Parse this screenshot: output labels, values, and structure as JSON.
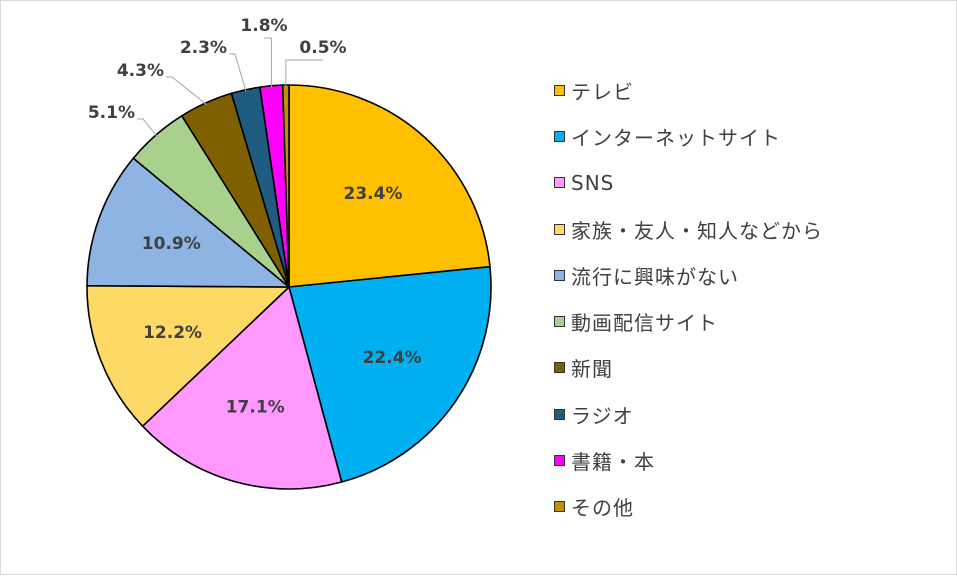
{
  "chart_data": {
    "type": "pie",
    "categories": [
      "テレビ",
      "インターネットサイト",
      "SNS",
      "家族・友人・知人などから",
      "流行に興味がない",
      "動画配信サイト",
      "新聞",
      "ラジオ",
      "書籍・本",
      "その他"
    ],
    "values": [
      23.4,
      22.4,
      17.1,
      12.2,
      10.9,
      5.1,
      4.3,
      2.3,
      1.8,
      0.5
    ],
    "data_labels": [
      "23.4%",
      "22.4%",
      "17.1%",
      "12.2%",
      "10.9%",
      "5.1%",
      "4.3%",
      "2.3%",
      "1.8%",
      "0.5%"
    ],
    "colors": [
      "#FFC000",
      "#00B0F0",
      "#FF99FF",
      "#FFD966",
      "#8EB4E3",
      "#A9D18E",
      "#7F6000",
      "#1F5C80",
      "#FF00FF",
      "#BF9000"
    ],
    "start_angle": "12 o'clock",
    "direction": "clockwise",
    "legend_position": "right"
  }
}
